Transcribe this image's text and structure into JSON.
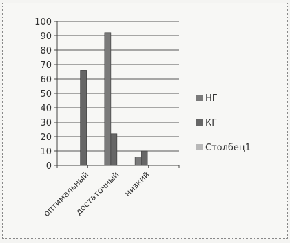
{
  "chart_data": {
    "type": "bar",
    "title": "",
    "xlabel": "",
    "ylabel": "",
    "categories": [
      "оптимальный",
      "достаточный",
      "низкий"
    ],
    "series": [
      {
        "name": "НГ",
        "values": [
          0,
          92,
          6
        ],
        "color": "#7a7a7a"
      },
      {
        "name": "КГ",
        "values": [
          66,
          22,
          10
        ],
        "color": "#666666"
      },
      {
        "name": "Столбец1",
        "values": [
          0,
          0,
          0
        ],
        "color": "#b8b8b8"
      }
    ],
    "ylim": [
      0,
      100
    ],
    "yticks": [
      0,
      10,
      20,
      30,
      40,
      50,
      60,
      70,
      80,
      90,
      100
    ],
    "grid": true,
    "legend": "right"
  }
}
